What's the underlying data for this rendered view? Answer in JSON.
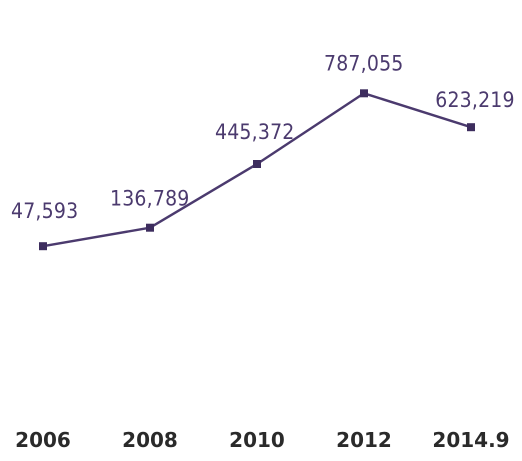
{
  "chart_data": {
    "type": "line",
    "title": "",
    "xlabel": "",
    "ylabel": "",
    "categories": [
      "2006",
      "2008",
      "2010",
      "2012",
      "2014.9"
    ],
    "values": [
      47593,
      136789,
      445372,
      787055,
      623219
    ],
    "data_labels": [
      "47,593",
      "136,789",
      "445,372",
      "787,055",
      "623,219"
    ],
    "ylim": [
      -750000,
      900000
    ],
    "grid": false,
    "legend": "none",
    "colors": {
      "line": "#4b3a6e",
      "marker": "#3d2d5e",
      "label": "#4b3a6e",
      "tick": "#2a2a2a"
    }
  }
}
